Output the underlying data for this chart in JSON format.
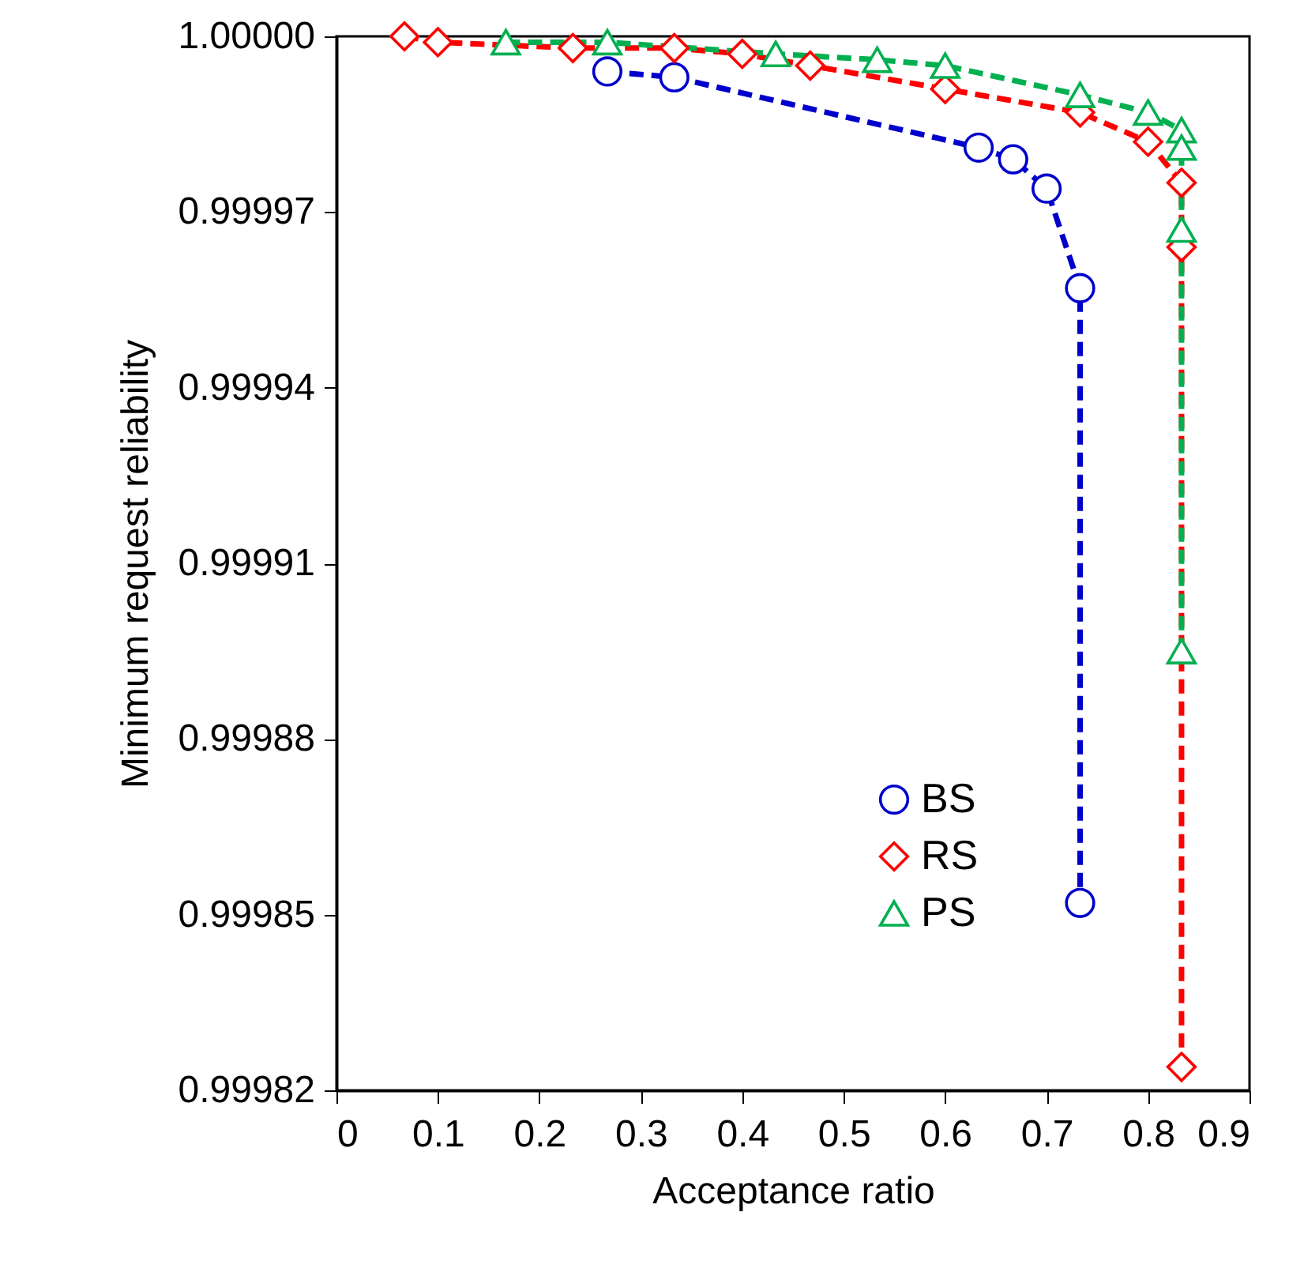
{
  "chart_data": {
    "type": "line",
    "xlabel": "Acceptance ratio",
    "ylabel": "Minimum request reliability",
    "xlim": [
      0,
      0.9
    ],
    "xticks": [
      0,
      0.1,
      0.2,
      0.3,
      0.4,
      0.5,
      0.6,
      0.7,
      0.8,
      0.9
    ],
    "ylim": [
      0.99982,
      1.0
    ],
    "yticks": [
      0.99982,
      0.99985,
      0.99988,
      0.99991,
      0.99994,
      0.99997,
      {
        "value": 1.0,
        "label": "1.00000"
      }
    ],
    "grid": false,
    "legend": "bottom right",
    "line_style": "dashed",
    "series": [
      {
        "name": "BS",
        "color": "#0000cc",
        "marker": "circle",
        "x": [
          0.267,
          0.333,
          0.633,
          0.667,
          0.7,
          0.733,
          0.733
        ],
        "values": [
          0.999994,
          0.999993,
          0.999981,
          0.999979,
          0.999974,
          0.999957,
          0.999852
        ]
      },
      {
        "name": "RS",
        "color": "#ff0000",
        "marker": "diamond",
        "x": [
          0.067,
          0.1,
          0.233,
          0.333,
          0.4,
          0.467,
          0.6,
          0.733,
          0.8,
          0.833,
          0.833,
          0.833
        ],
        "values": [
          1.0,
          0.999999,
          0.999998,
          0.999998,
          0.999997,
          0.999995,
          0.999991,
          0.999987,
          0.999982,
          0.999975,
          0.999964,
          0.999824
        ]
      },
      {
        "name": "PS",
        "color": "#00b050",
        "marker": "triangle",
        "x": [
          0.167,
          0.267,
          0.433,
          0.533,
          0.6,
          0.733,
          0.8,
          0.833,
          0.833,
          0.833,
          0.833
        ],
        "values": [
          0.999999,
          0.999999,
          0.999997,
          0.999996,
          0.999995,
          0.99999,
          0.999987,
          0.999984,
          0.999981,
          0.999967,
          0.999895
        ]
      }
    ]
  }
}
